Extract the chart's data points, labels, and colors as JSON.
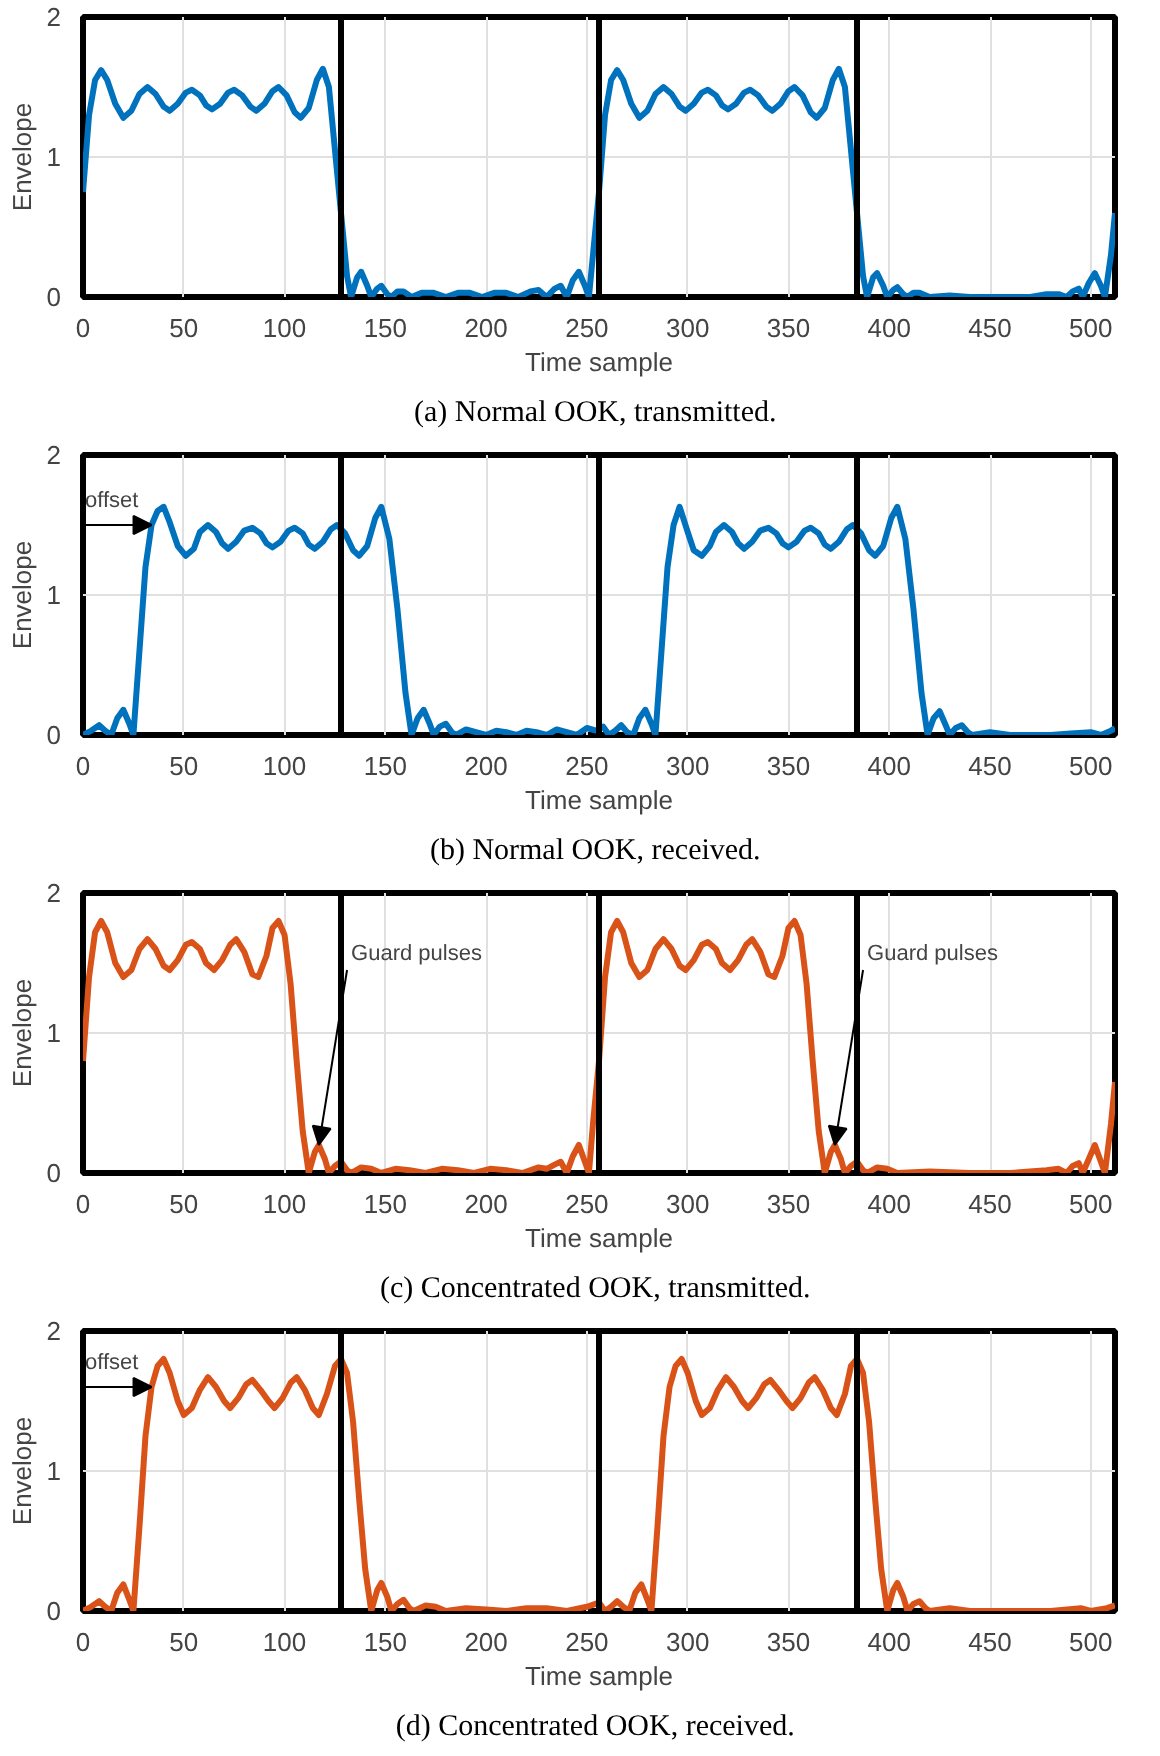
{
  "chart_data": [
    {
      "type": "line",
      "title": "(a)  Normal OOK, transmitted.",
      "xlabel": "Time sample",
      "ylabel": "Envelope",
      "xlim": [
        0,
        512
      ],
      "ylim": [
        0,
        2
      ],
      "xticks": [
        0,
        50,
        100,
        150,
        200,
        250,
        300,
        350,
        400,
        450,
        500
      ],
      "yticks": [
        0,
        1,
        2
      ],
      "grid": true,
      "ref_lines": [
        {
          "axis": "x",
          "value": 128,
          "color": "#000000"
        },
        {
          "axis": "x",
          "value": 256,
          "color": "#000000"
        },
        {
          "axis": "x",
          "value": 384,
          "color": "#000000"
        }
      ],
      "series": [
        {
          "color": "#0072bd",
          "x": [
            0,
            3,
            6,
            9,
            12,
            16,
            20,
            24,
            28,
            32,
            36,
            40,
            43,
            47,
            51,
            54,
            58,
            61,
            64,
            68,
            72,
            75,
            79,
            83,
            86,
            90,
            94,
            97,
            101,
            105,
            108,
            112,
            116,
            119,
            122,
            125,
            128,
            131,
            133,
            136,
            138,
            141,
            143,
            146,
            148,
            151,
            153,
            156,
            159,
            163,
            168,
            174,
            180,
            186,
            192,
            198,
            204,
            210,
            216,
            222,
            226,
            230,
            234,
            237,
            240,
            243,
            246,
            249,
            251,
            253,
            256,
            259,
            262,
            265,
            268,
            272,
            276,
            280,
            284,
            288,
            292,
            296,
            299,
            303,
            307,
            310,
            314,
            317,
            320,
            324,
            328,
            331,
            335,
            339,
            342,
            346,
            350,
            353,
            357,
            361,
            364,
            368,
            372,
            375,
            378,
            381,
            384,
            387,
            389,
            392,
            394,
            397,
            399,
            402,
            404,
            407,
            409,
            412,
            415,
            420,
            430,
            440,
            450,
            460,
            470,
            478,
            484,
            488,
            491,
            494,
            496,
            499,
            502,
            505,
            507,
            510,
            512
          ],
          "values": [
            0.75,
            1.3,
            1.55,
            1.62,
            1.55,
            1.38,
            1.28,
            1.33,
            1.45,
            1.5,
            1.45,
            1.36,
            1.33,
            1.38,
            1.46,
            1.48,
            1.44,
            1.37,
            1.34,
            1.38,
            1.46,
            1.48,
            1.44,
            1.36,
            1.33,
            1.38,
            1.47,
            1.5,
            1.44,
            1.32,
            1.28,
            1.35,
            1.55,
            1.63,
            1.5,
            1.05,
            0.6,
            0.15,
            0,
            0.14,
            0.18,
            0.08,
            0,
            0.06,
            0.08,
            0.02,
            0,
            0.04,
            0.04,
            0,
            0.03,
            0.03,
            0,
            0.03,
            0.03,
            0,
            0.03,
            0.03,
            0,
            0.04,
            0.05,
            0,
            0.06,
            0.08,
            0,
            0.12,
            0.18,
            0.08,
            0,
            0.3,
            0.75,
            1.3,
            1.55,
            1.62,
            1.55,
            1.38,
            1.28,
            1.33,
            1.45,
            1.5,
            1.45,
            1.36,
            1.33,
            1.38,
            1.46,
            1.48,
            1.44,
            1.37,
            1.34,
            1.38,
            1.46,
            1.48,
            1.44,
            1.36,
            1.33,
            1.38,
            1.47,
            1.5,
            1.44,
            1.32,
            1.28,
            1.35,
            1.55,
            1.63,
            1.5,
            1.05,
            0.6,
            0.15,
            0,
            0.14,
            0.17,
            0.08,
            0,
            0.05,
            0.07,
            0.02,
            0,
            0.03,
            0.03,
            0,
            0.01,
            0,
            0,
            0,
            0,
            0.02,
            0.02,
            0,
            0.04,
            0.06,
            0,
            0.1,
            0.17,
            0.08,
            0,
            0.3,
            0.6
          ]
        }
      ]
    },
    {
      "type": "line",
      "title": "(b)  Normal OOK, received.",
      "xlabel": "Time sample",
      "ylabel": "Envelope",
      "xlim": [
        0,
        512
      ],
      "ylim": [
        0,
        2
      ],
      "xticks": [
        0,
        50,
        100,
        150,
        200,
        250,
        300,
        350,
        400,
        450,
        500
      ],
      "yticks": [
        0,
        1,
        2
      ],
      "grid": true,
      "ref_lines": [
        {
          "axis": "x",
          "value": 128,
          "color": "#000000"
        },
        {
          "axis": "x",
          "value": 256,
          "color": "#000000"
        },
        {
          "axis": "x",
          "value": 384,
          "color": "#000000"
        }
      ],
      "annotations": [
        {
          "text": "offset",
          "x": 34,
          "y": 1.5
        }
      ],
      "series": [
        {
          "color": "#0072bd",
          "x": [
            0,
            4,
            8,
            11,
            14,
            17,
            20,
            23,
            25,
            28,
            31,
            34,
            37,
            40,
            43,
            47,
            51,
            55,
            58,
            62,
            66,
            69,
            72,
            76,
            80,
            84,
            88,
            91,
            94,
            98,
            102,
            105,
            109,
            112,
            115,
            119,
            123,
            126,
            130,
            134,
            137,
            141,
            145,
            148,
            152,
            156,
            160,
            163,
            166,
            169,
            172,
            174,
            177,
            180,
            183,
            185,
            190,
            195,
            200,
            205,
            210,
            215,
            220,
            225,
            230,
            235,
            240,
            245,
            250,
            255,
            258,
            261,
            264,
            267,
            270,
            273,
            276,
            279,
            282,
            284,
            287,
            290,
            293,
            296,
            300,
            303,
            307,
            311,
            314,
            318,
            322,
            325,
            328,
            332,
            336,
            340,
            344,
            347,
            350,
            354,
            358,
            361,
            365,
            368,
            371,
            375,
            379,
            382,
            386,
            390,
            393,
            397,
            401,
            404,
            408,
            412,
            416,
            419,
            422,
            425,
            428,
            430,
            433,
            436,
            439,
            441,
            450,
            460,
            470,
            480,
            490,
            500,
            505,
            510,
            512
          ],
          "values": [
            0,
            0.03,
            0.07,
            0.03,
            0,
            0.12,
            0.18,
            0.08,
            0,
            0.6,
            1.2,
            1.5,
            1.6,
            1.63,
            1.52,
            1.35,
            1.28,
            1.33,
            1.45,
            1.5,
            1.45,
            1.37,
            1.33,
            1.38,
            1.46,
            1.48,
            1.44,
            1.37,
            1.34,
            1.38,
            1.46,
            1.48,
            1.44,
            1.36,
            1.33,
            1.38,
            1.47,
            1.5,
            1.44,
            1.32,
            1.28,
            1.35,
            1.55,
            1.63,
            1.4,
            0.9,
            0.3,
            0,
            0.12,
            0.18,
            0.08,
            0,
            0.06,
            0.08,
            0.02,
            0,
            0.04,
            0.02,
            0,
            0.03,
            0.02,
            0,
            0.03,
            0.02,
            0,
            0.04,
            0.02,
            0,
            0.05,
            0.03,
            0.06,
            0,
            0.03,
            0.07,
            0.02,
            0,
            0.12,
            0.18,
            0.08,
            0,
            0.6,
            1.2,
            1.5,
            1.63,
            1.45,
            1.32,
            1.28,
            1.35,
            1.45,
            1.5,
            1.45,
            1.37,
            1.33,
            1.38,
            1.46,
            1.48,
            1.44,
            1.37,
            1.34,
            1.38,
            1.46,
            1.48,
            1.44,
            1.36,
            1.33,
            1.38,
            1.47,
            1.5,
            1.44,
            1.32,
            1.28,
            1.35,
            1.55,
            1.63,
            1.4,
            0.9,
            0.3,
            0,
            0.12,
            0.17,
            0.07,
            0,
            0.05,
            0.07,
            0.02,
            0,
            0.02,
            0,
            0,
            0,
            0.01,
            0.02,
            0,
            0.03,
            0.05
          ]
        }
      ]
    },
    {
      "type": "line",
      "title": "(c)  Concentrated OOK, transmitted.",
      "xlabel": "Time sample",
      "ylabel": "Envelope",
      "xlim": [
        0,
        512
      ],
      "ylim": [
        0,
        2
      ],
      "xticks": [
        0,
        50,
        100,
        150,
        200,
        250,
        300,
        350,
        400,
        450,
        500
      ],
      "yticks": [
        0,
        1,
        2
      ],
      "grid": true,
      "ref_lines": [
        {
          "axis": "x",
          "value": 128,
          "color": "#000000"
        },
        {
          "axis": "x",
          "value": 256,
          "color": "#000000"
        },
        {
          "axis": "x",
          "value": 384,
          "color": "#000000"
        }
      ],
      "annotations": [
        {
          "text": "Guard pulses",
          "x": 117,
          "y": 0.2
        },
        {
          "text": "Guard pulses",
          "x": 373,
          "y": 0.2
        }
      ],
      "series": [
        {
          "color": "#d95319",
          "x": [
            0,
            3,
            6,
            9,
            12,
            16,
            20,
            24,
            28,
            32,
            36,
            40,
            43,
            47,
            51,
            54,
            58,
            61,
            65,
            69,
            73,
            76,
            80,
            84,
            87,
            91,
            94,
            97,
            100,
            103,
            106,
            109,
            112,
            115,
            117,
            120,
            122,
            125,
            128,
            131,
            133,
            138,
            143,
            148,
            155,
            162,
            170,
            178,
            186,
            194,
            202,
            210,
            218,
            226,
            230,
            234,
            237,
            240,
            243,
            246,
            249,
            251,
            253,
            256,
            259,
            262,
            265,
            268,
            272,
            276,
            280,
            284,
            288,
            292,
            296,
            299,
            303,
            307,
            310,
            314,
            317,
            321,
            325,
            329,
            332,
            336,
            340,
            343,
            347,
            350,
            353,
            356,
            359,
            362,
            365,
            368,
            371,
            373,
            376,
            378,
            381,
            384,
            387,
            389,
            394,
            399,
            404,
            420,
            440,
            460,
            478,
            484,
            488,
            491,
            494,
            496,
            499,
            502,
            505,
            507,
            510,
            512
          ],
          "values": [
            0.8,
            1.4,
            1.72,
            1.8,
            1.72,
            1.5,
            1.4,
            1.45,
            1.6,
            1.67,
            1.6,
            1.48,
            1.45,
            1.52,
            1.63,
            1.65,
            1.6,
            1.5,
            1.45,
            1.52,
            1.63,
            1.67,
            1.58,
            1.42,
            1.4,
            1.55,
            1.75,
            1.8,
            1.7,
            1.35,
            0.8,
            0.3,
            0,
            0.15,
            0.2,
            0.1,
            0,
            0.05,
            0.08,
            0.02,
            0,
            0.04,
            0.03,
            0,
            0.03,
            0.02,
            0,
            0.03,
            0.02,
            0,
            0.03,
            0.02,
            0,
            0.04,
            0.03,
            0.06,
            0.08,
            0,
            0.12,
            0.2,
            0.08,
            0,
            0.35,
            0.8,
            1.4,
            1.72,
            1.8,
            1.72,
            1.5,
            1.4,
            1.45,
            1.6,
            1.67,
            1.6,
            1.48,
            1.45,
            1.52,
            1.63,
            1.65,
            1.6,
            1.5,
            1.45,
            1.52,
            1.63,
            1.67,
            1.58,
            1.42,
            1.4,
            1.55,
            1.75,
            1.8,
            1.7,
            1.35,
            0.8,
            0.3,
            0,
            0.15,
            0.2,
            0.1,
            0,
            0.05,
            0.08,
            0.02,
            0,
            0.04,
            0.03,
            0,
            0.01,
            0,
            0,
            0.02,
            0.03,
            0,
            0.05,
            0.07,
            0,
            0.1,
            0.2,
            0.08,
            0,
            0.35,
            0.65
          ]
        }
      ]
    },
    {
      "type": "line",
      "title": "(d)  Concentrated OOK, received.",
      "xlabel": "Time sample",
      "ylabel": "Envelope",
      "xlim": [
        0,
        512
      ],
      "ylim": [
        0,
        2
      ],
      "xticks": [
        0,
        50,
        100,
        150,
        200,
        250,
        300,
        350,
        400,
        450,
        500
      ],
      "yticks": [
        0,
        1,
        2
      ],
      "grid": true,
      "ref_lines": [
        {
          "axis": "x",
          "value": 128,
          "color": "#000000"
        },
        {
          "axis": "x",
          "value": 256,
          "color": "#000000"
        },
        {
          "axis": "x",
          "value": 384,
          "color": "#000000"
        }
      ],
      "annotations": [
        {
          "text": "offset",
          "x": 34,
          "y": 1.6
        }
      ],
      "series": [
        {
          "color": "#d95319",
          "x": [
            0,
            4,
            8,
            11,
            14,
            17,
            20,
            23,
            25,
            28,
            31,
            34,
            37,
            40,
            43,
            47,
            50,
            54,
            58,
            62,
            66,
            70,
            73,
            77,
            81,
            84,
            88,
            92,
            95,
            99,
            103,
            106,
            110,
            114,
            117,
            121,
            125,
            128,
            131,
            134,
            137,
            140,
            143,
            146,
            148,
            151,
            153,
            156,
            159,
            162,
            164,
            170,
            175,
            180,
            190,
            200,
            210,
            220,
            230,
            240,
            250,
            256,
            259,
            262,
            265,
            268,
            271,
            274,
            277,
            280,
            282,
            285,
            288,
            291,
            294,
            297,
            300,
            304,
            307,
            311,
            315,
            319,
            323,
            327,
            330,
            334,
            338,
            341,
            345,
            349,
            352,
            356,
            360,
            363,
            367,
            371,
            374,
            378,
            381,
            384,
            387,
            390,
            393,
            396,
            399,
            402,
            404,
            407,
            409,
            412,
            415,
            418,
            420,
            430,
            440,
            460,
            480,
            495,
            500,
            508,
            512
          ],
          "values": [
            0,
            0.03,
            0.07,
            0.03,
            0,
            0.13,
            0.19,
            0.08,
            0,
            0.6,
            1.25,
            1.6,
            1.75,
            1.8,
            1.7,
            1.5,
            1.4,
            1.45,
            1.58,
            1.67,
            1.6,
            1.5,
            1.45,
            1.52,
            1.62,
            1.65,
            1.58,
            1.5,
            1.45,
            1.52,
            1.63,
            1.67,
            1.58,
            1.45,
            1.4,
            1.55,
            1.75,
            1.8,
            1.7,
            1.35,
            0.8,
            0.3,
            0,
            0.15,
            0.2,
            0.1,
            0,
            0.05,
            0.08,
            0.02,
            0,
            0.04,
            0.03,
            0,
            0.02,
            0.01,
            0,
            0.02,
            0.02,
            0,
            0.03,
            0.06,
            0,
            0.03,
            0.07,
            0.03,
            0,
            0.13,
            0.19,
            0.08,
            0,
            0.6,
            1.25,
            1.6,
            1.75,
            1.8,
            1.7,
            1.5,
            1.4,
            1.45,
            1.58,
            1.67,
            1.6,
            1.5,
            1.45,
            1.52,
            1.62,
            1.65,
            1.58,
            1.5,
            1.45,
            1.52,
            1.63,
            1.67,
            1.58,
            1.45,
            1.4,
            1.55,
            1.75,
            1.8,
            1.7,
            1.35,
            0.8,
            0.3,
            0,
            0.15,
            0.2,
            0.1,
            0,
            0.05,
            0.07,
            0.02,
            0,
            0.02,
            0,
            0,
            0,
            0.02,
            0,
            0.02,
            0.04
          ]
        }
      ]
    }
  ]
}
